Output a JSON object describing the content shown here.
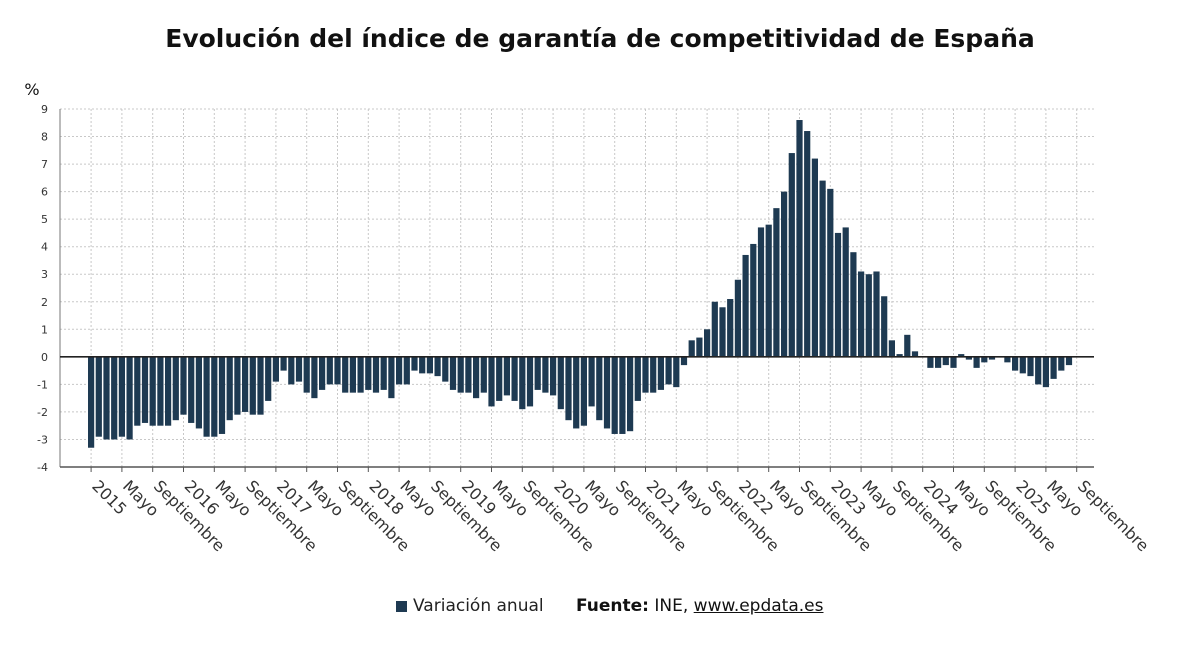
{
  "chart_data": {
    "type": "bar",
    "title": "Evolución del índice de garantía de competitividad de España",
    "ylabel": "%",
    "xlabel": "",
    "ylim": [
      -4,
      9
    ],
    "yticks": [
      9,
      8,
      7,
      6,
      5,
      4,
      3,
      2,
      1,
      0,
      -1,
      -2,
      -3,
      -4
    ],
    "grid": true,
    "start_period": "2015-01",
    "x_tick_labels": [
      "2015",
      "Mayo",
      "Septiembre",
      "2016",
      "Mayo",
      "Septiembre",
      "2017",
      "Mayo",
      "Septiembre",
      "2018",
      "Mayo",
      "Septiembre",
      "2019",
      "Mayo",
      "Septiembre",
      "2020",
      "Mayo",
      "Septiembre",
      "2021",
      "Mayo",
      "Septiembre",
      "2022",
      "Mayo",
      "Septiembre",
      "2023",
      "Mayo",
      "Septiembre",
      "2024",
      "Mayo",
      "Septiembre",
      "2025",
      "Mayo",
      "Septiembre"
    ],
    "series": [
      {
        "name": "Variación anual",
        "color": "#1e3a52",
        "values": [
          -3.3,
          -2.9,
          -3.0,
          -3.0,
          -2.9,
          -3.0,
          -2.5,
          -2.4,
          -2.5,
          -2.5,
          -2.5,
          -2.3,
          -2.1,
          -2.4,
          -2.6,
          -2.9,
          -2.9,
          -2.8,
          -2.3,
          -2.1,
          -2.0,
          -2.1,
          -2.1,
          -1.6,
          -0.9,
          -0.5,
          -1.0,
          -0.9,
          -1.3,
          -1.5,
          -1.2,
          -1.0,
          -1.0,
          -1.3,
          -1.3,
          -1.3,
          -1.2,
          -1.3,
          -1.2,
          -1.5,
          -1.0,
          -1.0,
          -0.5,
          -0.6,
          -0.6,
          -0.7,
          -0.9,
          -1.2,
          -1.3,
          -1.3,
          -1.5,
          -1.3,
          -1.8,
          -1.6,
          -1.4,
          -1.6,
          -1.9,
          -1.8,
          -1.2,
          -1.3,
          -1.4,
          -1.9,
          -2.3,
          -2.6,
          -2.5,
          -1.8,
          -2.3,
          -2.6,
          -2.8,
          -2.8,
          -2.7,
          -1.6,
          -1.3,
          -1.3,
          -1.2,
          -1.0,
          -1.1,
          -0.3,
          0.6,
          0.7,
          1.0,
          2.0,
          1.8,
          2.1,
          2.8,
          3.7,
          4.1,
          4.7,
          4.8,
          5.4,
          6.0,
          7.4,
          8.6,
          8.2,
          7.2,
          6.4,
          6.1,
          4.5,
          4.7,
          3.8,
          3.1,
          3.0,
          3.1,
          2.2,
          0.6,
          0.1,
          0.8,
          0.2,
          0.0,
          -0.4,
          -0.4,
          -0.3,
          -0.4,
          0.1,
          -0.1,
          -0.4,
          -0.2,
          -0.1,
          0.0,
          -0.2,
          -0.5,
          -0.6,
          -0.7,
          -1.0,
          -1.1,
          -0.8,
          -0.5,
          -0.3
        ]
      }
    ]
  },
  "legend": {
    "label": "Variación anual"
  },
  "source": {
    "label": "Fuente:",
    "text": "INE,",
    "link": "www.epdata.es"
  }
}
